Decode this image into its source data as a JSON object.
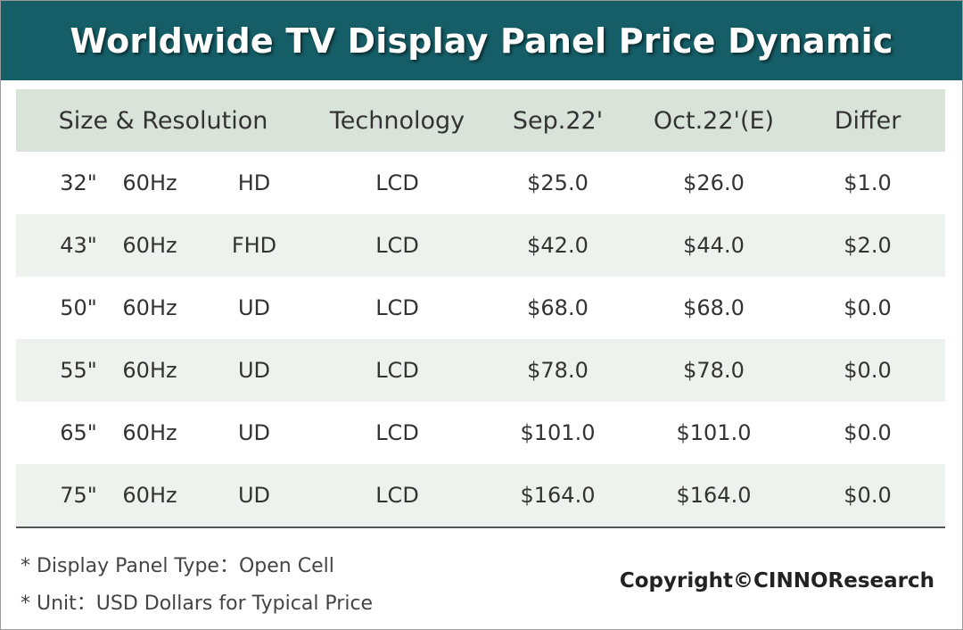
{
  "title": "Worldwide TV Display Panel Price Dynamic",
  "chart_data": {
    "type": "table",
    "title": "Worldwide TV Display Panel Price Dynamic",
    "columns": [
      "Size & Resolution",
      "Technology",
      "Sep.22'",
      "Oct.22'(E)",
      "Differ"
    ],
    "rows": [
      {
        "size": "32\"",
        "refresh": "60Hz",
        "resolution": "HD",
        "technology": "LCD",
        "sep": "$25.0",
        "oct": "$26.0",
        "differ": "$1.0"
      },
      {
        "size": "43\"",
        "refresh": "60Hz",
        "resolution": "FHD",
        "technology": "LCD",
        "sep": "$42.0",
        "oct": "$44.0",
        "differ": "$2.0"
      },
      {
        "size": "50\"",
        "refresh": "60Hz",
        "resolution": "UD",
        "technology": "LCD",
        "sep": "$68.0",
        "oct": "$68.0",
        "differ": "$0.0"
      },
      {
        "size": "55\"",
        "refresh": "60Hz",
        "resolution": "UD",
        "technology": "LCD",
        "sep": "$78.0",
        "oct": "$78.0",
        "differ": "$0.0"
      },
      {
        "size": "65\"",
        "refresh": "60Hz",
        "resolution": "UD",
        "technology": "LCD",
        "sep": "$101.0",
        "oct": "$101.0",
        "differ": "$0.0"
      },
      {
        "size": "75\"",
        "refresh": "60Hz",
        "resolution": "UD",
        "technology": "LCD",
        "sep": "$164.0",
        "oct": "$164.0",
        "differ": "$0.0"
      }
    ]
  },
  "notes": {
    "panel_type": "* Display Panel Type：Open Cell",
    "unit": "* Unit：USD Dollars for Typical Price"
  },
  "copyright": "Copyright©CINNOResearch",
  "colors": {
    "title_bar": "#155e67",
    "header_bg": "#d9e3da",
    "alt_row_bg": "#eef2ee"
  }
}
